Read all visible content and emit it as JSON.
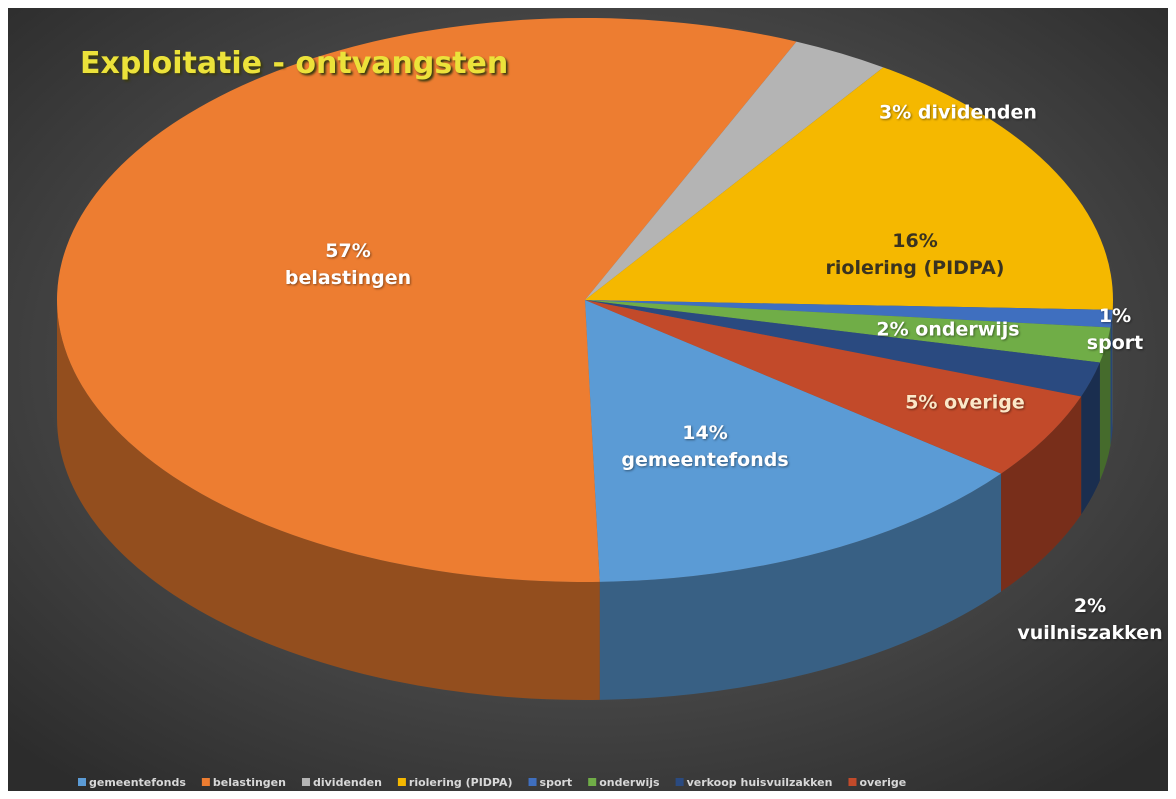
{
  "chart_data": {
    "type": "pie",
    "title": "Exploitatie - ontvangsten",
    "categories": [
      "gemeentefonds",
      "belastingen",
      "dividenden",
      "riolering (PIDPA)",
      "sport",
      "onderwijs",
      "verkoop huisvuilzakken",
      "overige"
    ],
    "values": [
      14,
      57,
      3,
      16,
      1,
      2,
      2,
      5
    ],
    "value_labels": [
      "14%\ngemeentefonds",
      "57%\nbelastingen",
      "3% dividenden",
      "16%\nriolering (PIDPA)",
      "1% sport",
      "2% onderwijs",
      "2%\nvuilniszakken",
      "5% overige"
    ],
    "colors": [
      "#5b9bd5",
      "#ed7d31",
      "#b4b4b4",
      "#f5b800",
      "#3f6fbf",
      "#70ad47",
      "#2a4a80",
      "#c24a2a"
    ],
    "legend": "bottom"
  }
}
